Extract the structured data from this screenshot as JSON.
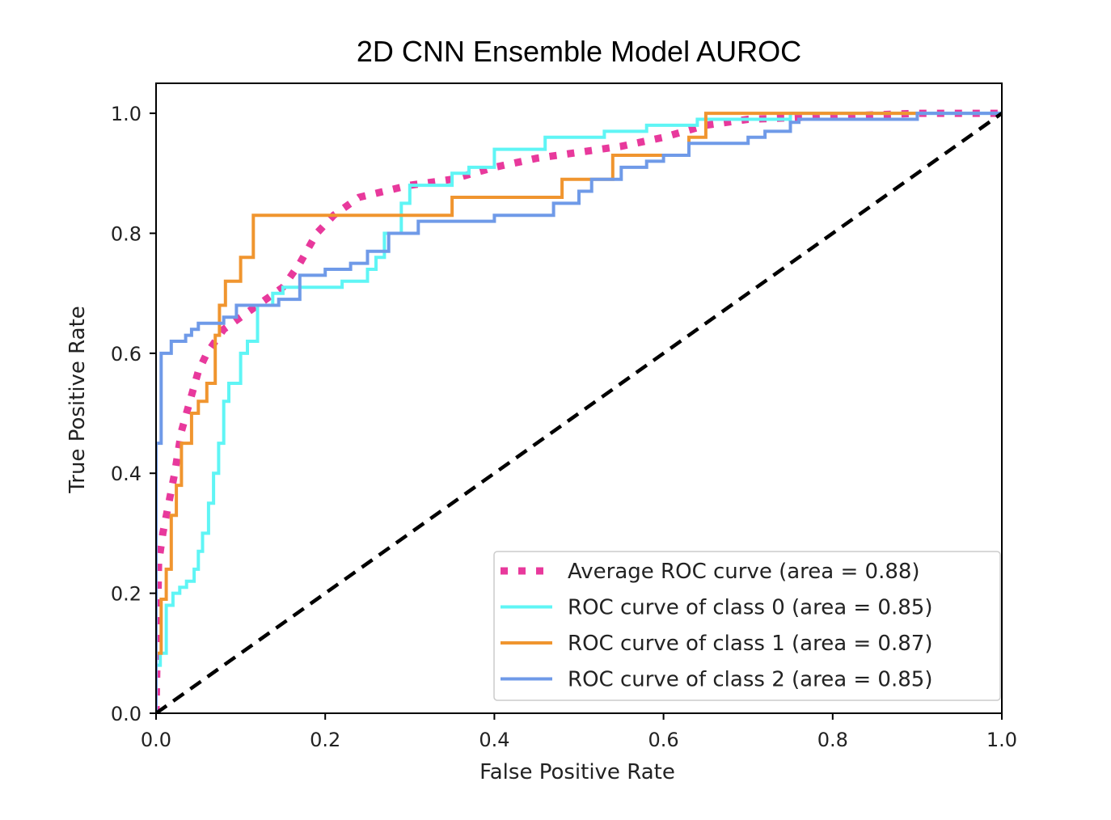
{
  "chart_data": {
    "type": "line",
    "title": "2D CNN Ensemble Model AUROC",
    "xlabel": "False Positive Rate",
    "ylabel": "True Positive Rate",
    "xlim": [
      0.0,
      1.0
    ],
    "ylim": [
      0.0,
      1.05
    ],
    "xticks": [
      "0.0",
      "0.2",
      "0.4",
      "0.6",
      "0.8",
      "1.0"
    ],
    "yticks": [
      "0.0",
      "0.2",
      "0.4",
      "0.6",
      "0.8",
      "1.0"
    ],
    "grid": false,
    "legend_position": "lower-right",
    "series": [
      {
        "name": "Average ROC curve (area = 0.88)",
        "color": "#e8399c",
        "style": "dotted",
        "x": [
          0.0,
          0.003,
          0.008,
          0.015,
          0.022,
          0.03,
          0.04,
          0.05,
          0.06,
          0.07,
          0.08,
          0.1,
          0.12,
          0.15,
          0.17,
          0.19,
          0.21,
          0.24,
          0.27,
          0.3,
          0.35,
          0.4,
          0.45,
          0.5,
          0.55,
          0.6,
          0.65,
          0.7,
          0.8,
          0.9,
          1.0
        ],
        "y": [
          0.0,
          0.25,
          0.3,
          0.35,
          0.4,
          0.47,
          0.52,
          0.57,
          0.6,
          0.62,
          0.64,
          0.66,
          0.68,
          0.71,
          0.75,
          0.8,
          0.83,
          0.86,
          0.87,
          0.88,
          0.89,
          0.91,
          0.925,
          0.935,
          0.945,
          0.96,
          0.98,
          0.99,
          0.995,
          1.0,
          1.0
        ]
      },
      {
        "name": "ROC curve of class 0 (area = 0.85)",
        "color": "#5ff5f5",
        "style": "solid",
        "x": [
          0.0,
          0.0,
          0.005,
          0.005,
          0.012,
          0.012,
          0.02,
          0.02,
          0.028,
          0.028,
          0.036,
          0.036,
          0.045,
          0.045,
          0.05,
          0.05,
          0.055,
          0.055,
          0.062,
          0.062,
          0.068,
          0.068,
          0.074,
          0.074,
          0.08,
          0.08,
          0.086,
          0.086,
          0.1,
          0.1,
          0.108,
          0.108,
          0.12,
          0.12,
          0.138,
          0.138,
          0.15,
          0.15,
          0.17,
          0.17,
          0.19,
          0.19,
          0.22,
          0.22,
          0.25,
          0.25,
          0.26,
          0.26,
          0.27,
          0.27,
          0.29,
          0.29,
          0.3,
          0.3,
          0.31,
          0.31,
          0.35,
          0.35,
          0.37,
          0.37,
          0.4,
          0.4,
          0.43,
          0.43,
          0.46,
          0.46,
          0.53,
          0.53,
          0.58,
          0.58,
          0.64,
          0.64,
          0.68,
          0.68,
          0.72,
          0.72,
          0.75,
          0.75,
          0.85,
          0.85,
          0.9,
          0.9,
          1.0
        ],
        "y": [
          0.0,
          0.08,
          0.08,
          0.1,
          0.1,
          0.18,
          0.18,
          0.2,
          0.2,
          0.21,
          0.21,
          0.22,
          0.22,
          0.24,
          0.24,
          0.27,
          0.27,
          0.3,
          0.3,
          0.35,
          0.35,
          0.4,
          0.4,
          0.45,
          0.45,
          0.52,
          0.52,
          0.55,
          0.55,
          0.6,
          0.6,
          0.62,
          0.62,
          0.68,
          0.68,
          0.7,
          0.7,
          0.71,
          0.71,
          0.71,
          0.71,
          0.71,
          0.71,
          0.72,
          0.72,
          0.74,
          0.74,
          0.76,
          0.76,
          0.8,
          0.8,
          0.85,
          0.85,
          0.88,
          0.88,
          0.88,
          0.88,
          0.9,
          0.9,
          0.91,
          0.91,
          0.94,
          0.94,
          0.94,
          0.94,
          0.96,
          0.96,
          0.97,
          0.97,
          0.98,
          0.98,
          0.99,
          0.99,
          0.99,
          0.99,
          0.99,
          0.99,
          1.0,
          1.0,
          1.0,
          1.0,
          1.0,
          1.0
        ]
      },
      {
        "name": "ROC curve of class 1 (area = 0.87)",
        "color": "#f0952f",
        "style": "solid",
        "x": [
          0.0,
          0.0,
          0.006,
          0.006,
          0.012,
          0.012,
          0.018,
          0.018,
          0.024,
          0.024,
          0.03,
          0.03,
          0.042,
          0.042,
          0.05,
          0.05,
          0.06,
          0.06,
          0.07,
          0.07,
          0.075,
          0.075,
          0.082,
          0.082,
          0.1,
          0.1,
          0.115,
          0.115,
          0.29,
          0.29,
          0.35,
          0.35,
          0.48,
          0.48,
          0.54,
          0.54,
          0.63,
          0.63,
          0.65,
          0.65,
          0.9
        ],
        "y": [
          0.0,
          0.1,
          0.1,
          0.19,
          0.19,
          0.24,
          0.24,
          0.33,
          0.33,
          0.38,
          0.38,
          0.45,
          0.45,
          0.5,
          0.5,
          0.52,
          0.52,
          0.55,
          0.55,
          0.63,
          0.63,
          0.68,
          0.68,
          0.72,
          0.72,
          0.76,
          0.76,
          0.83,
          0.83,
          0.83,
          0.83,
          0.86,
          0.86,
          0.89,
          0.89,
          0.93,
          0.93,
          0.96,
          0.96,
          1.0,
          1.0
        ]
      },
      {
        "name": "ROC curve of class 2 (area = 0.85)",
        "color": "#6f9ae8",
        "style": "solid",
        "x": [
          0.0,
          0.0,
          0.006,
          0.006,
          0.018,
          0.018,
          0.035,
          0.035,
          0.042,
          0.042,
          0.05,
          0.05,
          0.08,
          0.08,
          0.095,
          0.095,
          0.13,
          0.13,
          0.145,
          0.145,
          0.17,
          0.17,
          0.2,
          0.2,
          0.23,
          0.23,
          0.25,
          0.25,
          0.275,
          0.275,
          0.31,
          0.31,
          0.4,
          0.4,
          0.47,
          0.47,
          0.5,
          0.5,
          0.515,
          0.515,
          0.55,
          0.55,
          0.58,
          0.58,
          0.6,
          0.6,
          0.63,
          0.63,
          0.7,
          0.7,
          0.72,
          0.72,
          0.75,
          0.75,
          0.76,
          0.76,
          0.9,
          0.9,
          1.0
        ],
        "y": [
          0.0,
          0.45,
          0.45,
          0.6,
          0.6,
          0.62,
          0.62,
          0.63,
          0.63,
          0.64,
          0.64,
          0.65,
          0.65,
          0.66,
          0.66,
          0.68,
          0.68,
          0.68,
          0.68,
          0.69,
          0.69,
          0.73,
          0.73,
          0.74,
          0.74,
          0.75,
          0.75,
          0.77,
          0.77,
          0.8,
          0.8,
          0.82,
          0.82,
          0.83,
          0.83,
          0.85,
          0.85,
          0.87,
          0.87,
          0.89,
          0.89,
          0.91,
          0.91,
          0.92,
          0.92,
          0.93,
          0.93,
          0.95,
          0.95,
          0.96,
          0.96,
          0.97,
          0.97,
          0.985,
          0.985,
          0.99,
          0.99,
          1.0,
          1.0
        ]
      }
    ],
    "reference_line": {
      "color": "#000000",
      "style": "dashed",
      "x": [
        0.0,
        1.0
      ],
      "y": [
        0.0,
        1.0
      ]
    }
  }
}
